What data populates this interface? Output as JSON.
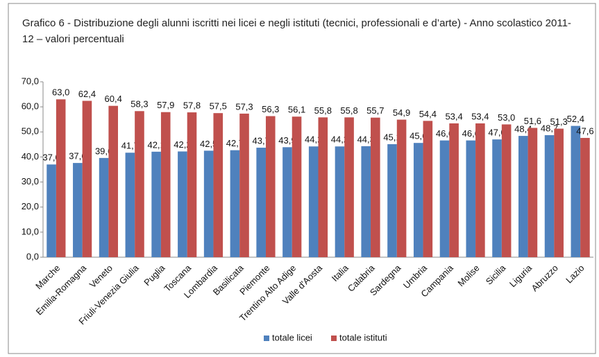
{
  "chart_data": {
    "type": "bar",
    "title": "Grafico 6 - Distribuzione degli alunni iscritti nei licei e negli istituti (tecnici, professionali e d’arte) - Anno scolastico 2011-12 – valori percentuali",
    "categories": [
      "Marche",
      "Emilia-Romagna",
      "Veneto",
      "Friuli-Venezia Giulia",
      "Puglia",
      "Toscana",
      "Lombardia",
      "Basilicata",
      "Piemonte",
      "Trentino Alto Adige",
      "Valle d'Aosta",
      "Italia",
      "Calabria",
      "Sardegna",
      "Umbria",
      "Campania",
      "Molise",
      "Sicilia",
      "Liguria",
      "Abruzzo",
      "Lazio"
    ],
    "series": [
      {
        "name": "totale licei",
        "color": "#4f81bd",
        "values": [
          37.0,
          37.6,
          39.6,
          41.7,
          42.1,
          42.2,
          42.5,
          42.7,
          43.7,
          43.9,
          44.2,
          44.2,
          44.3,
          45.1,
          45.6,
          46.6,
          46.6,
          47.0,
          48.4,
          48.7,
          52.4
        ],
        "value_labels": [
          "37,0",
          "37,6",
          "39,6",
          "41,7",
          "42,1",
          "42,2",
          "42,5",
          "42,7",
          "43,7",
          "43,9",
          "44,2",
          "44,2",
          "44,3",
          "45,1",
          "45,6",
          "46,6",
          "46,6",
          "47,0",
          "48,4",
          "48,7",
          "52,4"
        ]
      },
      {
        "name": "totale istituti",
        "color": "#c0504d",
        "values": [
          63.0,
          62.4,
          60.4,
          58.3,
          57.9,
          57.8,
          57.5,
          57.3,
          56.3,
          56.1,
          55.8,
          55.8,
          55.7,
          54.9,
          54.4,
          53.4,
          53.4,
          53.0,
          51.6,
          51.3,
          47.6
        ],
        "value_labels": [
          "63,0",
          "62,4",
          "60,4",
          "58,3",
          "57,9",
          "57,8",
          "57,5",
          "57,3",
          "56,3",
          "56,1",
          "55,8",
          "55,8",
          "55,7",
          "54,9",
          "54,4",
          "53,4",
          "53,4",
          "53,0",
          "51,6",
          "51,3",
          "47,6"
        ]
      }
    ],
    "ylim": [
      0,
      70
    ],
    "yticks": [
      {
        "value": 0,
        "label": "0,0"
      },
      {
        "value": 10,
        "label": "10,0"
      },
      {
        "value": 20,
        "label": "20,0"
      },
      {
        "value": 30,
        "label": "30,0"
      },
      {
        "value": 40,
        "label": "40,0"
      },
      {
        "value": 50,
        "label": "50,0"
      },
      {
        "value": 60,
        "label": "60,0"
      },
      {
        "value": 70,
        "label": "70,0"
      }
    ],
    "grid": false,
    "legend": "bottom"
  }
}
